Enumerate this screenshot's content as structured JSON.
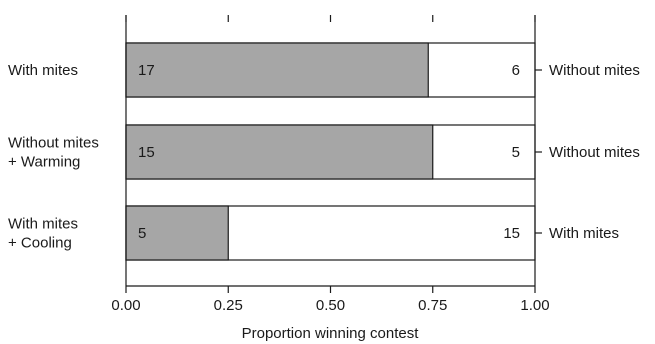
{
  "chart_data": {
    "type": "bar",
    "orientation": "horizontal",
    "stacked": true,
    "xlabel": "Proportion winning contest",
    "xlim": [
      0,
      1
    ],
    "xticks": [
      "0.00",
      "0.25",
      "0.50",
      "0.75",
      "1.00"
    ],
    "colors": {
      "win": "#a6a6a6",
      "lose": "#ffffff",
      "edge": "#1a1a1a"
    },
    "rows": [
      {
        "left_label": [
          "With mites"
        ],
        "right_label": "Without mites",
        "proportion": 0.739,
        "left_count": "17",
        "right_count": "6"
      },
      {
        "left_label": [
          "Without mites",
          "+ Warming"
        ],
        "right_label": "Without mites",
        "proportion": 0.75,
        "left_count": "15",
        "right_count": "5"
      },
      {
        "left_label": [
          "With mites",
          "+ Cooling"
        ],
        "right_label": "With mites",
        "proportion": 0.25,
        "left_count": "5",
        "right_count": "15"
      }
    ]
  }
}
